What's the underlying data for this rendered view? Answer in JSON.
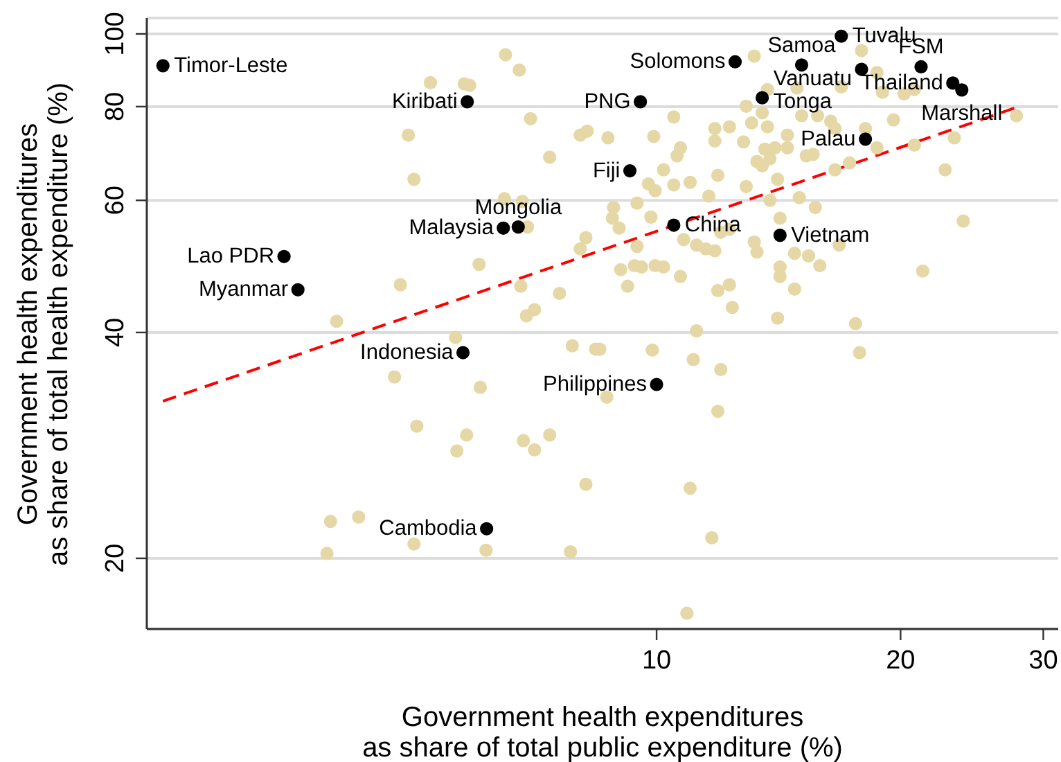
{
  "chart_data": {
    "type": "scatter",
    "xlabel": "Government health expenditures\nas share of total public expenditure (%)",
    "ylabel": "Government health expenditures\nas share of total health expenditure (%)",
    "log": "xy",
    "xlim": [
      2.35,
      31.3
    ],
    "ylim": [
      16.1,
      105
    ],
    "xticks": [
      10,
      20,
      30
    ],
    "yticks": [
      20,
      40,
      60,
      80,
      100
    ],
    "grid": "y",
    "marker": "circle",
    "series": [
      {
        "color": "#e5d8a6",
        "x": [
          6.51,
          6.77,
          5.26,
          5.79,
          5.88,
          6.99,
          4.94,
          8.05,
          8.21,
          7.38,
          5.02,
          6.49,
          6.83,
          6.93,
          8.18,
          8.05,
          6.04,
          4.83,
          6.8,
          7.59,
          6.91,
          7.07,
          4.03,
          5.65,
          13.2,
          17.9,
          18.7,
          19,
          20.2,
          20.8,
          16.9,
          13.7,
          14.9,
          12.9,
          13.5,
          10.5,
          8.71,
          9.92,
          11.8,
          11.8,
          12.3,
          12.8,
          13.1,
          13.7,
          14.5,
          15.1,
          15.8,
          16.4,
          16.6,
          18.1,
          19.6,
          20.8,
          23.3,
          22.7,
          27.8,
          10.7,
          10.6,
          10.2,
          11,
          10.5,
          9.77,
          9.96,
          11.9,
          13.3,
          13.5,
          13.8,
          14,
          14.5,
          13.6,
          15.3,
          15.6,
          16.6,
          17.3,
          18.7,
          14.1,
          12.9,
          11.6,
          9.46,
          8.85,
          8.82,
          8.99,
          9.84,
          13.8,
          15,
          15.7,
          14.2,
          23.9,
          10.8,
          11.2,
          11.5,
          11.8,
          12,
          12.3,
          9.46,
          13.2,
          13.3,
          14.8,
          15.4,
          15.9,
          16.8,
          9.03,
          9.39,
          9.58,
          9.96,
          10.2,
          10.7,
          14.2,
          14.2,
          9.21,
          11.9,
          12.3,
          14.8,
          21.3,
          12.4,
          14.1,
          17.6,
          11.2,
          8.51,
          9.88,
          11.1,
          12,
          17.8,
          8.68,
          11.9,
          8.18,
          11,
          11.7,
          10.9,
          7.87,
          8.41,
          4.75,
          6.06,
          5.06,
          5.83,
          5.67,
          6.85,
          7.07,
          7.38,
          3.96,
          4.29,
          5.02,
          3.92,
          6.16,
          7.83
        ],
        "values": [
          93.8,
          89.5,
          86.1,
          85.8,
          85.4,
          77.1,
          73.3,
          73.3,
          74.2,
          68.5,
          64,
          60.3,
          59.8,
          55.3,
          53.5,
          51.7,
          49.3,
          46.3,
          46.1,
          45.1,
          42.1,
          42.9,
          41.4,
          39.4,
          93.4,
          95,
          88.8,
          83.6,
          83.2,
          84.3,
          85,
          84.3,
          84.7,
          80.1,
          78.5,
          77.5,
          72.7,
          73,
          74.8,
          72,
          75.2,
          71.8,
          76.1,
          75.2,
          73.3,
          77.8,
          77.8,
          76.5,
          74.8,
          74.8,
          76.8,
          71.1,
          72.7,
          65.9,
          77.8,
          70.5,
          68.8,
          65.9,
          63.4,
          62.9,
          63.1,
          61.8,
          64.8,
          67.6,
          66.7,
          68.2,
          70.5,
          70.5,
          70.2,
          68.8,
          69.1,
          65.9,
          67.3,
          70.5,
          64,
          62.6,
          60.8,
          59.5,
          58.7,
          56.8,
          55.1,
          57,
          60,
          60.5,
          58.7,
          56.8,
          56.3,
          53.2,
          52.3,
          51.7,
          51.4,
          54.4,
          54.9,
          52.1,
          52.8,
          51.2,
          51,
          50.6,
          49.1,
          52.3,
          48.5,
          49.1,
          48.9,
          49.1,
          48.9,
          47.5,
          48.9,
          47.5,
          46.1,
          45.5,
          46.3,
          45.7,
          48.3,
          43.2,
          41.8,
          41.1,
          40.2,
          38,
          37.9,
          36.8,
          35.7,
          37.6,
          32.8,
          31.4,
          25.1,
          24.8,
          21.3,
          16.9,
          38.4,
          38,
          34.9,
          33.8,
          30,
          29.2,
          27.8,
          28.7,
          27.9,
          29.2,
          22.4,
          22.7,
          20.9,
          20.3,
          20.5,
          20.4
        ]
      },
      {
        "color": "#000000",
        "x": [
          2.46,
          5.84,
          6.75,
          6.47,
          3.47,
          3.61,
          9.55,
          9.27,
          12.5,
          16.9,
          15.1,
          17.9,
          21.2,
          23.2,
          23.8,
          13.5,
          18.1,
          10.5,
          14.2,
          5.77,
          10,
          6.17
        ],
        "values": [
          90.7,
          81.2,
          55.3,
          55.1,
          50.5,
          45.6,
          81.2,
          65.7,
          91.8,
          99.3,
          90.9,
          89.7,
          90.4,
          86,
          84.2,
          82.2,
          72.4,
          55.6,
          53.9,
          37.6,
          34.1,
          21.9
        ]
      },
      {
        "type": "line",
        "color": "#ff0000",
        "line_style": "dashed",
        "marker": "none",
        "x": [
          2.46,
          27.9
        ],
        "values": [
          32.4,
          79.9
        ]
      }
    ],
    "annotations": [
      {
        "text": "Timor-Leste",
        "x": 2.46,
        "y": 90.7
      },
      {
        "text": "Kiribati",
        "x": 5.84,
        "y": 81.2
      },
      {
        "text": "Mongolia",
        "x": 6.75,
        "y": 55.3
      },
      {
        "text": "Malaysia",
        "x": 6.47,
        "y": 55.1
      },
      {
        "text": "Lao PDR",
        "x": 3.47,
        "y": 50.5
      },
      {
        "text": "Myanmar",
        "x": 3.61,
        "y": 45.6
      },
      {
        "text": "PNG",
        "x": 9.55,
        "y": 81.2
      },
      {
        "text": "Fiji",
        "x": 9.27,
        "y": 65.7
      },
      {
        "text": "Solomons",
        "x": 12.5,
        "y": 91.8
      },
      {
        "text": "Tuvalu",
        "x": 16.9,
        "y": 99.3
      },
      {
        "text": "Samoa",
        "x": 15.1,
        "y": 90.9
      },
      {
        "text": "Vanuatu",
        "x": 17.9,
        "y": 89.7
      },
      {
        "text": "FSM",
        "x": 21.2,
        "y": 90.4
      },
      {
        "text": "Thailand",
        "x": 23.2,
        "y": 86
      },
      {
        "text": "Marshall",
        "x": 23.8,
        "y": 84.2
      },
      {
        "text": "Tonga",
        "x": 13.5,
        "y": 82.2
      },
      {
        "text": "Palau",
        "x": 18.1,
        "y": 72.4
      },
      {
        "text": "China",
        "x": 10.5,
        "y": 55.6
      },
      {
        "text": "Vietnam",
        "x": 14.2,
        "y": 53.9
      },
      {
        "text": "Indonesia",
        "x": 5.77,
        "y": 37.6
      },
      {
        "text": "Philippines",
        "x": 10,
        "y": 34.1
      },
      {
        "text": "Cambodia",
        "x": 6.17,
        "y": 21.9
      }
    ]
  }
}
